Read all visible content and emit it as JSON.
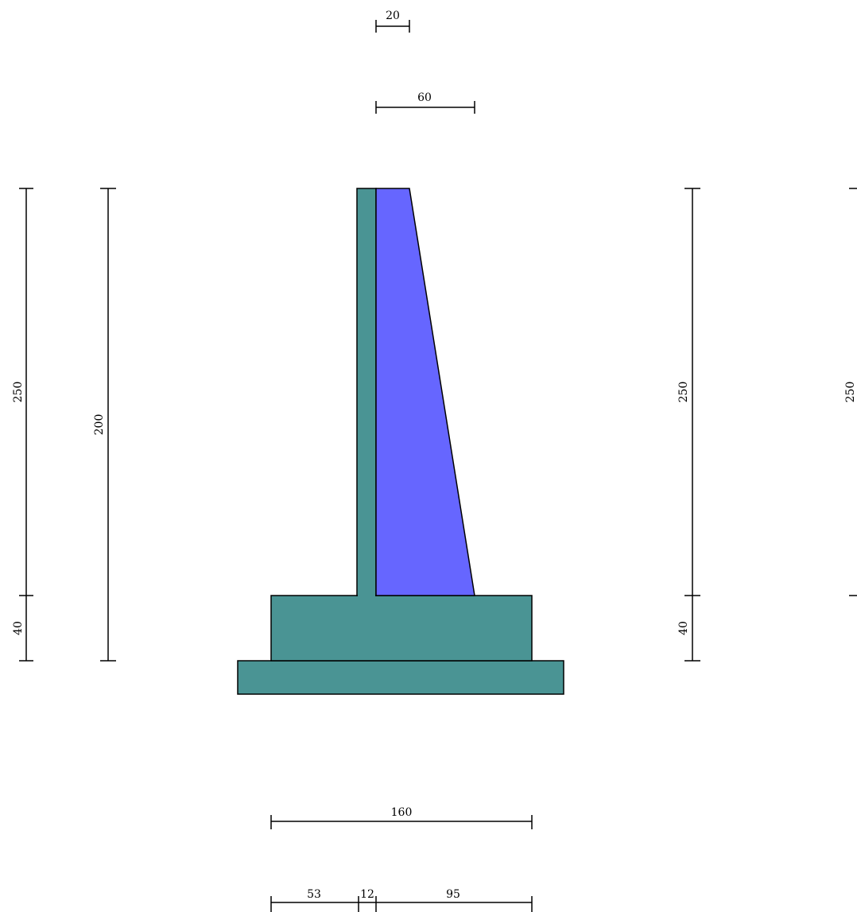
{
  "colors": {
    "wall": "#4a9494",
    "fill_triangle": "#6666ff",
    "line": "#000000",
    "background": "#ffffff"
  },
  "dimensions": {
    "top_stem_width": "20",
    "top_overall_width": "60",
    "left_outer_height_stem": "250",
    "left_outer_height_base": "40",
    "left_inner_height": "200",
    "right_height_stem": "250",
    "right_height_base": "40",
    "far_right_height": "250",
    "bottom_total_width": "160",
    "bottom_toe": "53",
    "bottom_stem": "12",
    "bottom_heel": "95"
  }
}
